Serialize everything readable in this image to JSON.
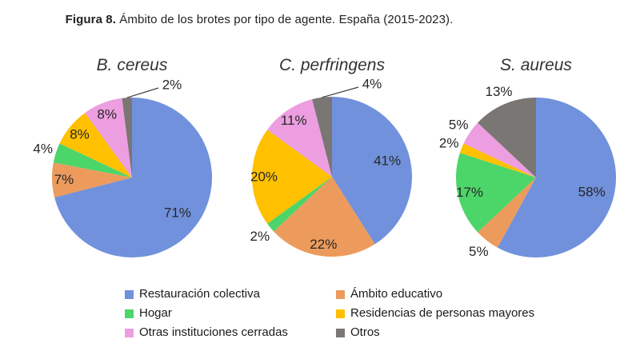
{
  "caption": {
    "prefix": "Figura 8.",
    "rest": "Ámbito de los brotes por tipo de agente. España (2015-2023)."
  },
  "palette": [
    "#7191DC",
    "#EC9B5C",
    "#4CD568",
    "#FFC000",
    "#EC9EE0",
    "#7A7674"
  ],
  "categories": [
    "Restauración colectiva",
    "Ámbito educativo",
    "Hogar",
    "Residencias de personas mayores",
    "Otras instituciones cerradas",
    "Otros"
  ],
  "chart_data": [
    {
      "type": "pie",
      "title": "B. cereus",
      "categories": [
        "Restauración colectiva",
        "Ámbito educativo",
        "Hogar",
        "Residencias de personas mayores",
        "Otras instituciones cerradas",
        "Otros"
      ],
      "values": [
        71,
        7,
        4,
        8,
        8,
        2
      ],
      "labels": [
        "71%",
        "7%",
        "4%",
        "8%",
        "8%",
        "2%"
      ],
      "label_placement": [
        "inside",
        "inside",
        "outside",
        "inside",
        "inside",
        "leader"
      ],
      "start_angle_deg": 0,
      "direction": "clockwise",
      "legend_position": "bottom"
    },
    {
      "type": "pie",
      "title": "C. perfringens",
      "categories": [
        "Restauración colectiva",
        "Ámbito educativo",
        "Hogar",
        "Residencias de personas mayores",
        "Otras instituciones cerradas",
        "Otros"
      ],
      "values": [
        41,
        22,
        2,
        20,
        11,
        4
      ],
      "labels": [
        "41%",
        "22%",
        "2%",
        "20%",
        "11%",
        "4%"
      ],
      "label_placement": [
        "inside",
        "inside",
        "outside",
        "inside",
        "inside",
        "leader"
      ],
      "start_angle_deg": 0,
      "direction": "clockwise",
      "legend_position": "bottom"
    },
    {
      "type": "pie",
      "title": "S. aureus",
      "categories": [
        "Restauración colectiva",
        "Ámbito educativo",
        "Hogar",
        "Residencias de personas mayores",
        "Otras instituciones cerradas",
        "Otros"
      ],
      "values": [
        58,
        5,
        17,
        2,
        5,
        13
      ],
      "labels": [
        "58%",
        "5%",
        "17%",
        "2%",
        "5%",
        "13%"
      ],
      "label_placement": [
        "inside",
        "outside",
        "inside",
        "outside",
        "outside",
        "outside"
      ],
      "start_angle_deg": 0,
      "direction": "clockwise",
      "legend_position": "bottom"
    }
  ],
  "legend": {
    "items": [
      {
        "label": "Restauración colectiva"
      },
      {
        "label": "Ámbito educativo"
      },
      {
        "label": "Hogar"
      },
      {
        "label": "Residencias de personas mayores"
      },
      {
        "label": "Otras instituciones cerradas"
      },
      {
        "label": "Otros"
      }
    ]
  }
}
